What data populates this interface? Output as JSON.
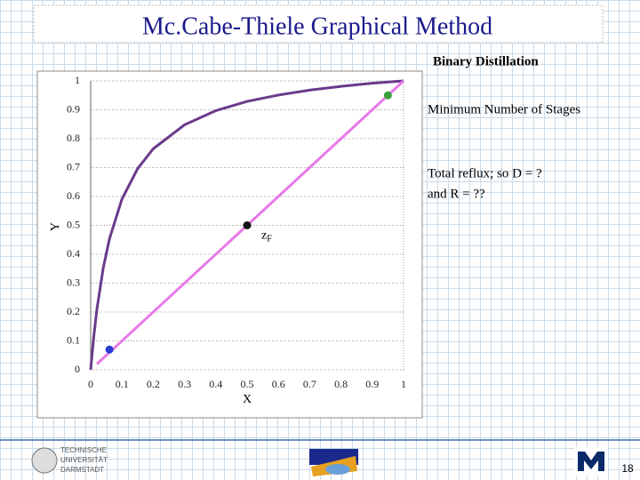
{
  "chart_data": {
    "type": "line",
    "title": "Mc.Cabe-Thiele Graphical Method",
    "subtitle": "Binary Distillation",
    "xlabel": "X",
    "ylabel": "Y",
    "xlim": [
      0,
      1
    ],
    "ylim": [
      0,
      1
    ],
    "xticks": [
      0,
      0.1,
      0.2,
      0.3,
      0.4,
      0.5,
      0.6,
      0.7,
      0.8,
      0.9,
      1
    ],
    "yticks": [
      0,
      0.1,
      0.2,
      0.3,
      0.4,
      0.5,
      0.6,
      0.7,
      0.8,
      0.9,
      1
    ],
    "grid": true,
    "series": [
      {
        "color": "#6a3a8c",
        "x": [
          0,
          0.01,
          0.02,
          0.04,
          0.06,
          0.1,
          0.15,
          0.2,
          0.3,
          0.4,
          0.5,
          0.6,
          0.7,
          0.8,
          0.9,
          1
        ],
        "values": [
          0,
          0.116,
          0.21,
          0.351,
          0.453,
          0.591,
          0.696,
          0.765,
          0.848,
          0.897,
          0.929,
          0.951,
          0.968,
          0.981,
          0.992,
          1
        ]
      },
      {
        "color": "#e879e8",
        "x": [
          0.02,
          1
        ],
        "values": [
          0.02,
          1
        ]
      }
    ],
    "points": [
      {
        "x": 0.95,
        "y": 0.95,
        "color": "#3aa03a"
      },
      {
        "x": 0.5,
        "y": 0.5,
        "color": "#111111"
      },
      {
        "x": 0.06,
        "y": 0.07,
        "color": "#2a3ad0"
      }
    ],
    "point_label": {
      "text": "z",
      "sub": "F"
    },
    "annotations": [
      "Minimum Number of Stages",
      "Total reflux; so D = ?",
      "and R = ??"
    ]
  },
  "footer": {
    "logo_text": [
      "TECHNISCHE",
      "UNIVERSITÄT",
      "DARMSTADT"
    ],
    "page": "18"
  }
}
